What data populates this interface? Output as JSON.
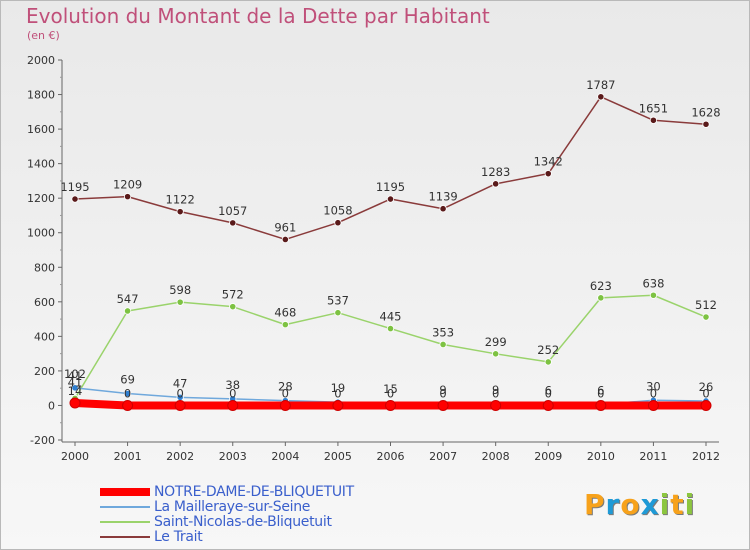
{
  "title": "Evolution du Montant de la Dette par Habitant",
  "subtitle": "(en €)",
  "logo": {
    "text": "Proxiti",
    "letters": [
      {
        "ch": "P",
        "color": "#f7a21b"
      },
      {
        "ch": "r",
        "color": "#1f9ad6"
      },
      {
        "ch": "o",
        "color": "#f7a21b"
      },
      {
        "ch": "x",
        "color": "#1f9ad6"
      },
      {
        "ch": "i",
        "color": "#8cc63f"
      },
      {
        "ch": "t",
        "color": "#f7a21b"
      },
      {
        "ch": "i",
        "color": "#8cc63f"
      }
    ]
  },
  "chart_data": {
    "type": "line",
    "x": [
      "2000",
      "2001",
      "2002",
      "2003",
      "2004",
      "2005",
      "2006",
      "2007",
      "2008",
      "2009",
      "2010",
      "2011",
      "2012"
    ],
    "ylim": [
      -200,
      2000
    ],
    "yticks": [
      -200,
      0,
      200,
      400,
      600,
      800,
      1000,
      1200,
      1400,
      1600,
      1800,
      2000
    ],
    "grid": false,
    "legend": "bottom-left",
    "series": [
      {
        "name": "NOTRE-DAME-DE-BLIQUETUIT",
        "color": "#ff0000",
        "marker": "#ff0000",
        "width": 8,
        "values": [
          14,
          0,
          0,
          0,
          0,
          0,
          0,
          0,
          0,
          0,
          0,
          0,
          0
        ],
        "labels": [
          "14",
          "",
          "",
          "",
          "",
          "",
          "",
          "",
          "",
          "",
          "",
          "",
          ""
        ]
      },
      {
        "name": "La Mailleraye-sur-Seine",
        "color": "#6fa8dc",
        "marker": "#2f7fd1",
        "width": 1.5,
        "values": [
          102,
          69,
          47,
          38,
          28,
          19,
          15,
          9,
          9,
          6,
          6,
          30,
          26
        ],
        "labels": [
          "102",
          "69",
          "47",
          "38",
          "28",
          "19",
          "15",
          "9",
          "9",
          "6",
          "6",
          "30",
          "26"
        ]
      },
      {
        "name": "Saint-Nicolas-de-Bliquetuit",
        "color": "#9ad36b",
        "marker": "#7dc242",
        "width": 1.5,
        "values": [
          41,
          547,
          598,
          572,
          468,
          537,
          445,
          353,
          299,
          252,
          623,
          638,
          512
        ],
        "labels": [
          "41",
          "547",
          "598",
          "572",
          "468",
          "537",
          "445",
          "353",
          "299",
          "252",
          "623",
          "638",
          "512"
        ]
      },
      {
        "name": "Le Trait",
        "color": "#8a3b3b",
        "marker": "#5a1a1a",
        "width": 1.5,
        "values": [
          1195,
          1209,
          1122,
          1057,
          961,
          1058,
          1195,
          1139,
          1283,
          1342,
          1787,
          1651,
          1628
        ],
        "labels": [
          "1195",
          "1209",
          "1122",
          "1057",
          "961",
          "1058",
          "1195",
          "1139",
          "1283",
          "1342",
          "1787",
          "1651",
          "1628"
        ]
      }
    ],
    "zero_labels": [
      "",
      "0",
      "0",
      "0",
      "0",
      "0",
      "0",
      "0",
      "0",
      "0",
      "0",
      "0",
      "0"
    ]
  }
}
